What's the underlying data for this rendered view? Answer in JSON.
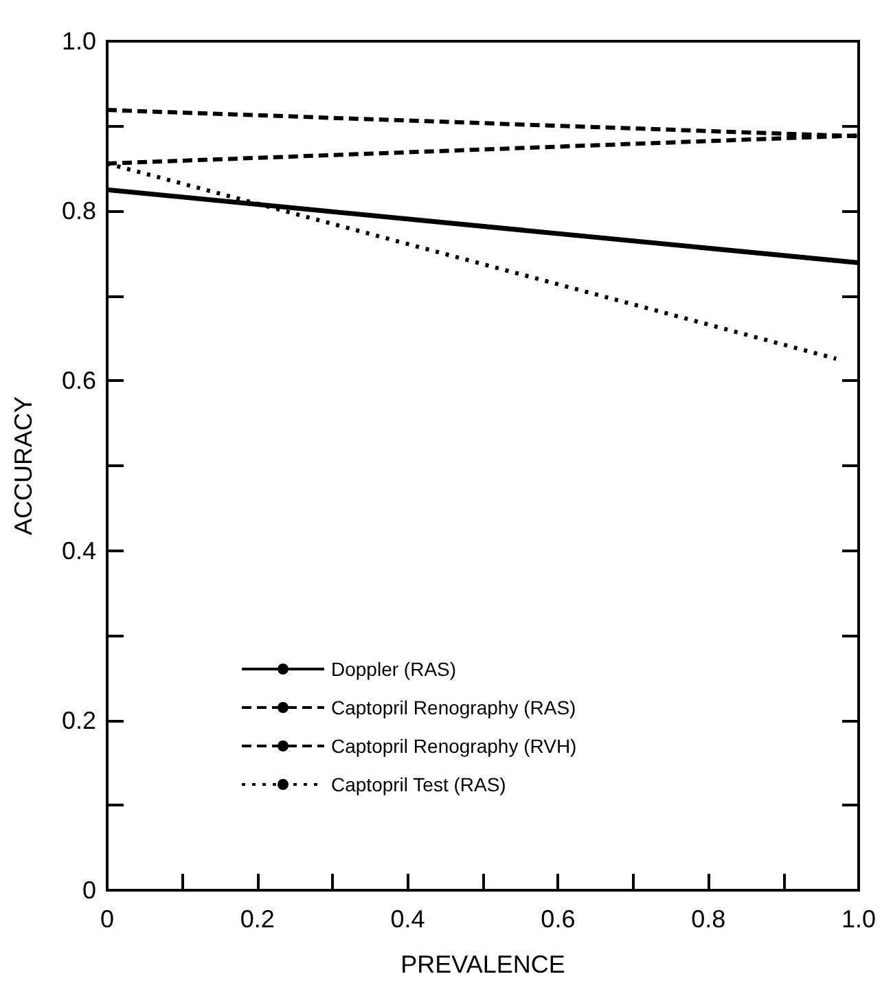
{
  "chart_data": {
    "type": "line",
    "xlabel": "PREVALENCE",
    "ylabel": "ACCURACY",
    "xlim": [
      0,
      1
    ],
    "ylim": [
      0,
      1
    ],
    "xticks": [
      0,
      {
        "value": 0.1,
        "label": null
      },
      0.2,
      {
        "value": 0.3,
        "label": null
      },
      0.4,
      {
        "value": 0.5,
        "label": null
      },
      0.6,
      {
        "value": 0.7,
        "label": null
      },
      0.8,
      {
        "value": 0.9,
        "label": null
      },
      {
        "value": 1,
        "label": "1.0"
      }
    ],
    "yticks": [
      0,
      {
        "value": 0.1,
        "label": null
      },
      0.2,
      {
        "value": 0.3,
        "label": null
      },
      0.4,
      {
        "value": 0.5,
        "label": null
      },
      0.6,
      {
        "value": 0.7,
        "label": null
      },
      0.8,
      {
        "value": 0.9,
        "label": null
      },
      {
        "value": 1,
        "label": "1.0"
      }
    ],
    "grid": false,
    "legend": "bottom",
    "marker": "none",
    "series": [
      {
        "name": "Doppler (RAS)",
        "color": "#000000",
        "line_style": "solid",
        "x": [
          0,
          1
        ],
        "values": [
          0.825,
          0.739
        ]
      },
      {
        "name": "Captopril Renography (RAS)",
        "color": "#000000",
        "line_style": "dashed",
        "x": [
          0,
          1
        ],
        "values": [
          0.919,
          0.888
        ]
      },
      {
        "name": "Captopril Renography (RVH)",
        "color": "#000000",
        "line_style": "dashed",
        "x": [
          0,
          1
        ],
        "values": [
          0.856,
          0.889
        ]
      },
      {
        "name": "Captopril Test (RAS)",
        "color": "#000000",
        "line_style": "dotted",
        "x": [
          0,
          0.97
        ],
        "values": [
          0.856,
          0.626
        ]
      }
    ]
  }
}
